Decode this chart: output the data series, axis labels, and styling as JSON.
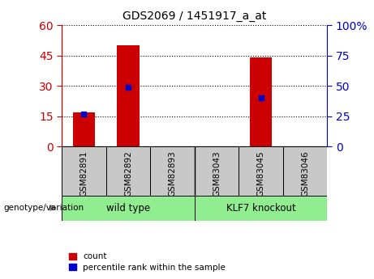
{
  "title": "GDS2069 / 1451917_a_at",
  "samples": [
    "GSM82891",
    "GSM82892",
    "GSM82893",
    "GSM83043",
    "GSM83045",
    "GSM83046"
  ],
  "counts": [
    17,
    50,
    0,
    0,
    44,
    0
  ],
  "percentile_ranks": [
    27,
    49,
    0,
    0,
    40,
    0
  ],
  "groups": [
    {
      "label": "wild type",
      "color": "#90ee90",
      "start": 0,
      "end": 3
    },
    {
      "label": "KLF7 knockout",
      "color": "#90ee90",
      "start": 3,
      "end": 6
    }
  ],
  "ylim_left": [
    0,
    60
  ],
  "ylim_right": [
    0,
    100
  ],
  "yticks_left": [
    0,
    15,
    30,
    45,
    60
  ],
  "yticks_right": [
    0,
    25,
    50,
    75,
    100
  ],
  "ytick_labels_right": [
    "0",
    "25",
    "50",
    "75",
    "100%"
  ],
  "bar_color": "#cc0000",
  "dot_color": "#0000cc",
  "left_axis_color": "#cc0000",
  "right_axis_color": "#0000cc",
  "sample_box_color": "#c8c8c8",
  "legend_count_label": "count",
  "legend_pct_label": "percentile rank within the sample",
  "genotype_label": "genotype/variation"
}
